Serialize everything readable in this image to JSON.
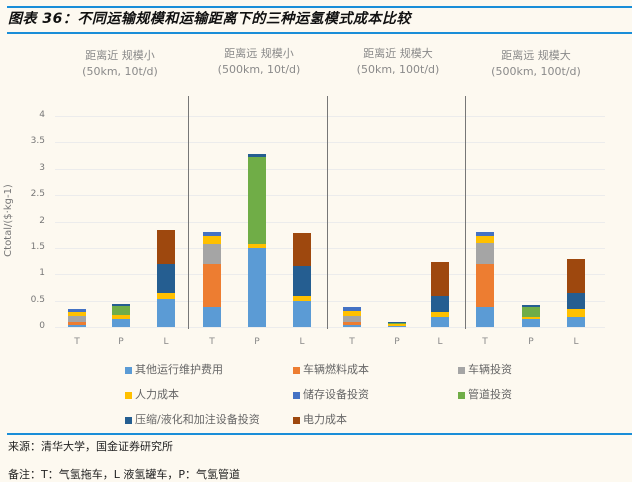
{
  "header": {
    "title": "图表 36：不同运输规模和运输距离下的三种运氢模式成本比较"
  },
  "groups": [
    {
      "line1": "距离近  规模小",
      "line2": "(50km, 10t/d)"
    },
    {
      "line1": "距离远  规模小",
      "line2": "(500km, 10t/d)"
    },
    {
      "line1": "距离近  规模大",
      "line2": "(50km, 100t/d)"
    },
    {
      "line1": "距离远  规模大",
      "line2": "(500km, 100t/d)"
    }
  ],
  "axis": {
    "ylabel": "Ctotal/($·kg-1)",
    "yticks": [
      "4",
      "3.5",
      "3",
      "2.5",
      "2",
      "1.5",
      "1",
      "0.5",
      "0"
    ],
    "xlabels": [
      "T",
      "P",
      "L",
      "T",
      "P",
      "L",
      "T",
      "P",
      "L",
      "T",
      "P",
      "L"
    ]
  },
  "legend": [
    {
      "label": "其他运行维护费用",
      "color": "#5b9bd5"
    },
    {
      "label": "车辆燃料成本",
      "color": "#ed7d31"
    },
    {
      "label": "车辆投资",
      "color": "#a5a5a5"
    },
    {
      "label": "人力成本",
      "color": "#ffc000"
    },
    {
      "label": "储存设备投资",
      "color": "#4472c4"
    },
    {
      "label": "管道投资",
      "color": "#70ad47"
    },
    {
      "label": "压缩/液化和加注设备投资",
      "color": "#255e91"
    },
    {
      "label": "电力成本",
      "color": "#9e480e"
    }
  ],
  "footer": {
    "source": "来源：清华大学，国金证券研究所",
    "note": "备注：T：气氢拖车，L 液氢罐车，P：气氢管道"
  },
  "chart_data": {
    "type": "bar",
    "stacked": true,
    "title": "不同运输规模和运输距离下的三种运氢模式成本比较",
    "xlabel": "",
    "ylabel": "Ctotal/($·kg-1)",
    "ylim": [
      0,
      4
    ],
    "grid": true,
    "legend_position": "bottom",
    "group_labels": [
      "距离近 规模小 (50km, 10t/d)",
      "距离远 规模小 (500km, 10t/d)",
      "距离近 规模大 (50km, 100t/d)",
      "距离远 规模大 (500km, 100t/d)"
    ],
    "categories": [
      "T",
      "P",
      "L",
      "T",
      "P",
      "L",
      "T",
      "P",
      "L",
      "T",
      "P",
      "L"
    ],
    "series": [
      {
        "name": "其他运行维护费用",
        "color": "#5b9bd5",
        "values": [
          0.04,
          0.16,
          0.53,
          0.38,
          1.49,
          0.49,
          0.04,
          0.02,
          0.19,
          0.38,
          0.15,
          0.19
        ]
      },
      {
        "name": "车辆燃料成本",
        "color": "#ed7d31",
        "values": [
          0.06,
          0,
          0,
          0.81,
          0,
          0,
          0.05,
          0,
          0,
          0.81,
          0,
          0
        ]
      },
      {
        "name": "车辆投资",
        "color": "#a5a5a5",
        "values": [
          0.1,
          0,
          0,
          0.39,
          0,
          0,
          0.12,
          0,
          0,
          0.41,
          0,
          0
        ]
      },
      {
        "name": "人力成本",
        "color": "#ffc000",
        "values": [
          0.09,
          0.06,
          0.11,
          0.14,
          0.09,
          0.09,
          0.1,
          0.03,
          0.09,
          0.12,
          0.04,
          0.15
        ]
      },
      {
        "name": "储存设备投资",
        "color": "#4472c4",
        "values": [
          0.05,
          0,
          0,
          0.09,
          0,
          0,
          0.07,
          0,
          0,
          0.09,
          0,
          0
        ]
      },
      {
        "name": "管道投资",
        "color": "#70ad47",
        "values": [
          0,
          0.17,
          0,
          0,
          1.65,
          0,
          0,
          0.03,
          0,
          0,
          0.19,
          0
        ]
      },
      {
        "name": "压缩/液化和加注设备投资",
        "color": "#255e91",
        "values": [
          0,
          0.04,
          0.55,
          0,
          0.05,
          0.57,
          0,
          0.02,
          0.3,
          0,
          0.04,
          0.3
        ]
      },
      {
        "name": "电力成本",
        "color": "#9e480e",
        "values": [
          0,
          0,
          0.64,
          0,
          0,
          0.64,
          0,
          0,
          0.65,
          0,
          0,
          0.64
        ]
      }
    ],
    "totals": [
      0.34,
      0.43,
      1.83,
      1.81,
      3.28,
      1.79,
      0.38,
      0.1,
      1.23,
      1.81,
      0.42,
      1.28
    ]
  }
}
